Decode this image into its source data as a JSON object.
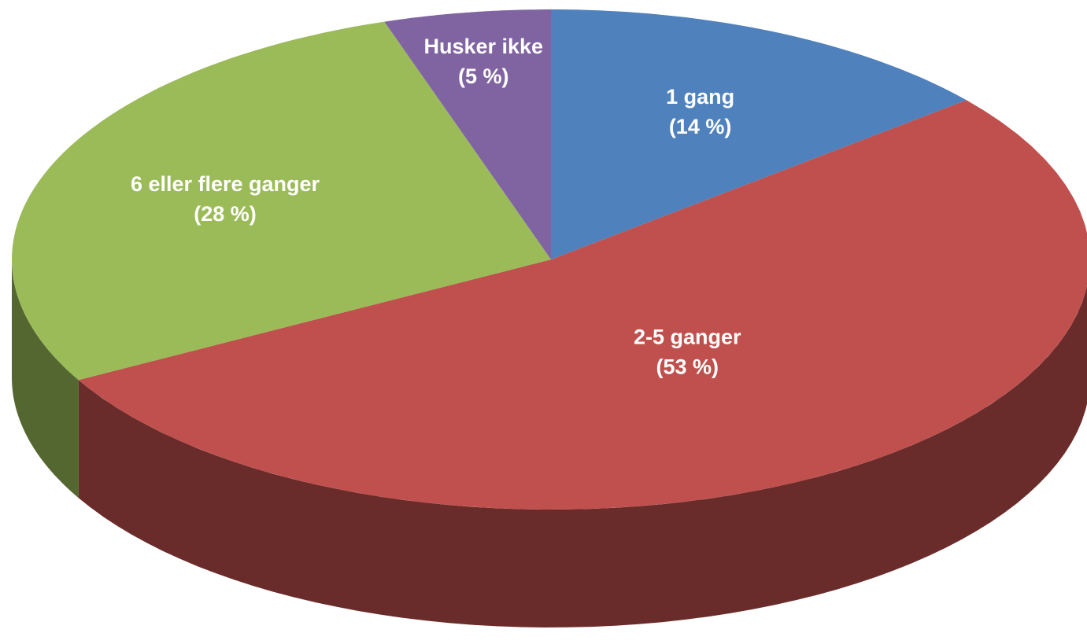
{
  "chart_data": {
    "type": "pie",
    "categories": [
      "1 gang",
      "2-5 ganger",
      "6 eller flere ganger",
      "Husker ikke"
    ],
    "values": [
      14,
      53,
      28,
      5
    ],
    "value_labels": [
      "(14 %)",
      "(53 %)",
      "(28 %)",
      "(5 %)"
    ],
    "colors": [
      "#4f81bd",
      "#c0504d",
      "#9bbb59",
      "#8064a2"
    ]
  }
}
